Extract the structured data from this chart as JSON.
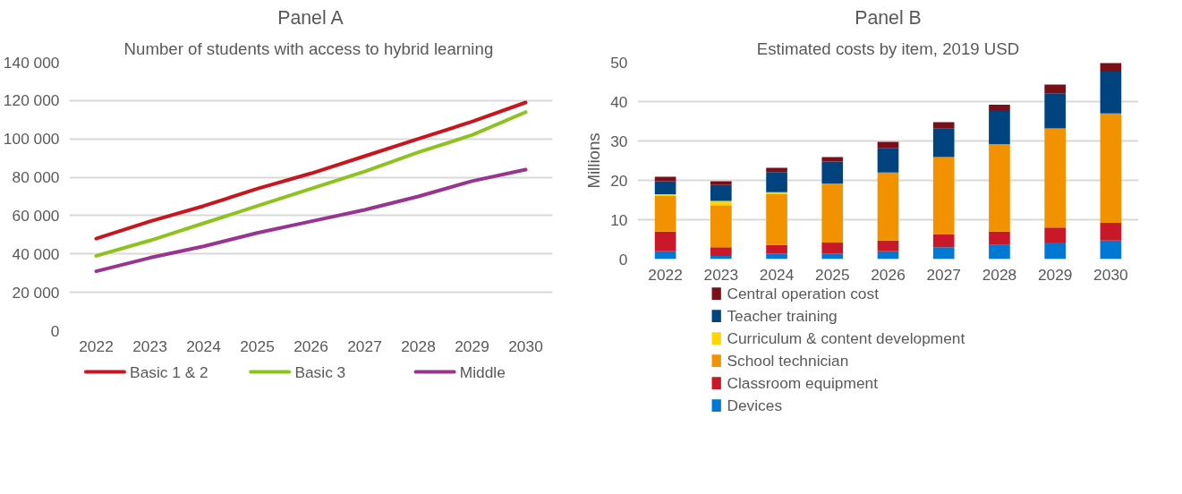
{
  "chart_data": [
    {
      "type": "line",
      "title": "Panel A",
      "subtitle": "Number of students  with access to hybrid learning",
      "categories": [
        "2022",
        "2023",
        "2024",
        "2025",
        "2026",
        "2027",
        "2028",
        "2029",
        "2030"
      ],
      "series": [
        {
          "name": "Basic 1 & 2",
          "color": "#c8161e",
          "values": [
            48000,
            57000,
            65000,
            74000,
            82000,
            91000,
            100000,
            109000,
            119000
          ]
        },
        {
          "name": "Basic 3",
          "color": "#8dc21f",
          "values": [
            39000,
            47000,
            56000,
            65000,
            74000,
            83000,
            93000,
            102000,
            114000
          ]
        },
        {
          "name": "Middle",
          "color": "#973590",
          "values": [
            31000,
            38000,
            44000,
            51000,
            57000,
            63000,
            70000,
            78000,
            84000
          ]
        }
      ],
      "ylim": [
        0,
        140000
      ],
      "yticks": [
        0,
        {
          "value": 20000,
          "label": "20 000"
        },
        {
          "value": 40000,
          "label": "40 000"
        },
        {
          "value": 60000,
          "label": "60 000"
        },
        {
          "value": 80000,
          "label": "80 000"
        },
        {
          "value": 100000,
          "label": "100 000"
        },
        {
          "value": 120000,
          "label": "120 000"
        },
        {
          "value": 140000,
          "label": "140 000"
        }
      ],
      "grid": "y",
      "legend": "bottom",
      "marker": "none",
      "line_style": "solid"
    },
    {
      "type": "bar",
      "stacked": true,
      "title": "Panel B",
      "subtitle": "Estimated costs by item, 2019 USD",
      "ylabel": "Millions",
      "categories": [
        "2022",
        "2023",
        "2024",
        "2025",
        "2026",
        "2027",
        "2028",
        "2029",
        "2030"
      ],
      "series": [
        {
          "name": "Devices",
          "color": "#0078d4",
          "values": [
            2.0,
            0.8,
            1.4,
            1.4,
            2.0,
            3.0,
            3.6,
            4.2,
            4.7
          ]
        },
        {
          "name": "Classroom equipment",
          "color": "#c8182a",
          "values": [
            5.0,
            2.2,
            2.2,
            2.8,
            2.7,
            3.3,
            3.4,
            3.8,
            4.5
          ]
        },
        {
          "name": "School technician",
          "color": "#f39200",
          "values": [
            9.0,
            10.7,
            12.9,
            15.0,
            17.3,
            19.6,
            22.2,
            25.2,
            27.8
          ]
        },
        {
          "name": "Curriculum & content development",
          "color": "#ffd500",
          "values": [
            0.5,
            1.1,
            0.5,
            0,
            0,
            0,
            0,
            0,
            0
          ]
        },
        {
          "name": "Teacher training",
          "color": "#00437f",
          "values": [
            3.3,
            4.0,
            5.1,
            5.6,
            6.1,
            7.2,
            8.4,
            8.9,
            10.6
          ]
        },
        {
          "name": "Central operation cost",
          "color": "#7a0f19",
          "values": [
            1.1,
            1.0,
            1.1,
            1.1,
            1.7,
            1.7,
            1.6,
            2.2,
            2.2
          ]
        }
      ],
      "ylim": [
        0,
        50
      ],
      "yticks": [
        0,
        10,
        20,
        30,
        40,
        50
      ],
      "grid": "y",
      "legend": "bottom"
    }
  ]
}
